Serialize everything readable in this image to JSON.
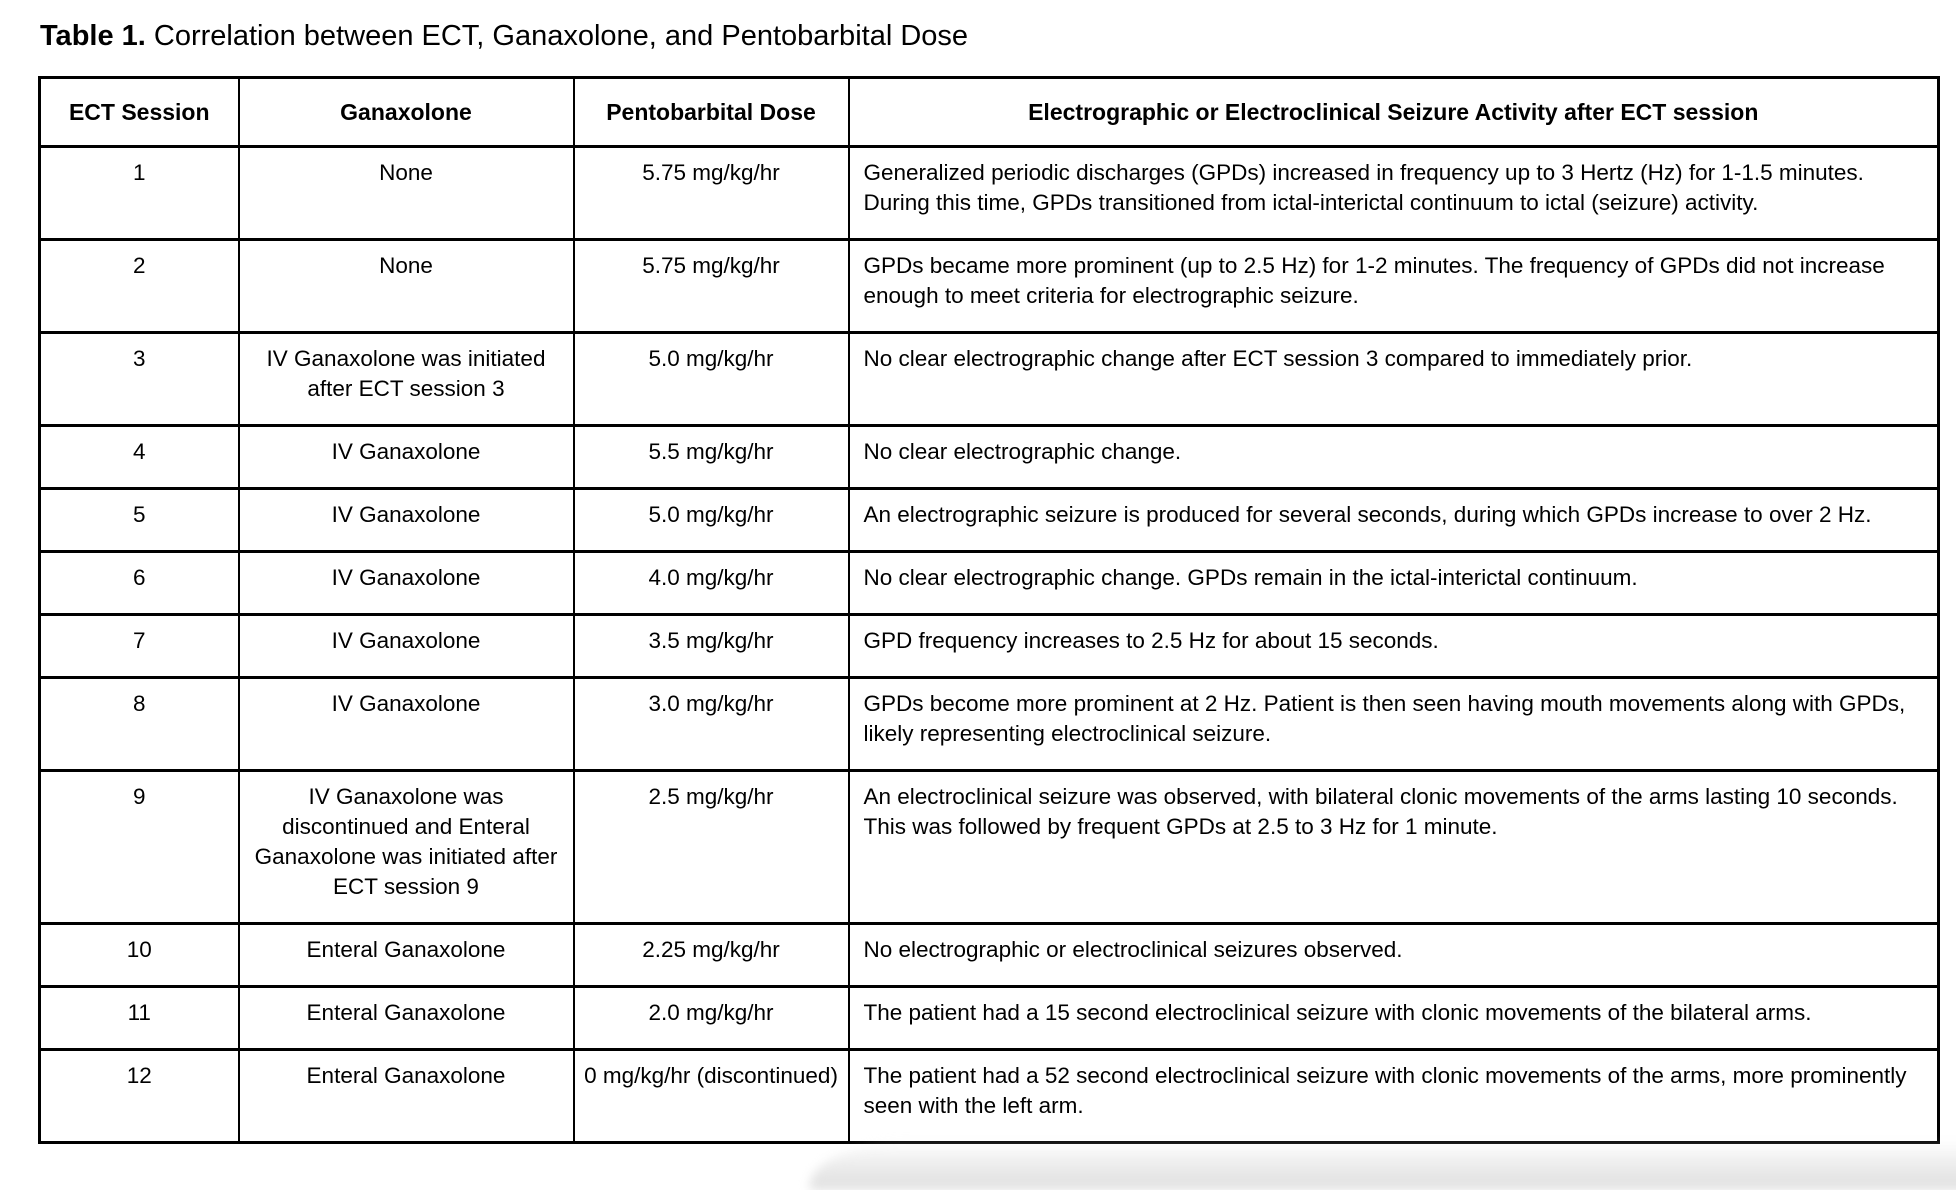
{
  "title": {
    "bold": "Table 1.",
    "rest": "Correlation between ECT, Ganaxolone, and Pentobarbital Dose"
  },
  "table": {
    "headers": [
      "ECT Session",
      "Ganaxolone",
      "Pentobarbital Dose",
      "Electrographic or Electroclinical Seizure Activity after ECT session"
    ],
    "rows": [
      {
        "session": "1",
        "ganaxolone": "None",
        "dose": "5.75 mg/kg/hr",
        "activity": "Generalized periodic discharges (GPDs) increased in frequency up to 3 Hertz (Hz) for 1-1.5 minutes. During this time, GPDs transitioned from ictal-interictal continuum to ictal (seizure) activity."
      },
      {
        "session": "2",
        "ganaxolone": "None",
        "dose": "5.75 mg/kg/hr",
        "activity": "GPDs became more prominent (up to 2.5 Hz) for 1-2 minutes. The frequency of GPDs did not increase enough to meet criteria for electrographic seizure."
      },
      {
        "session": "3",
        "ganaxolone": "IV Ganaxolone was initiated after ECT session 3",
        "dose": "5.0 mg/kg/hr",
        "activity": "No clear electrographic change after ECT session 3 compared to immediately prior."
      },
      {
        "session": "4",
        "ganaxolone": "IV Ganaxolone",
        "dose": "5.5 mg/kg/hr",
        "activity": "No clear electrographic change."
      },
      {
        "session": "5",
        "ganaxolone": "IV Ganaxolone",
        "dose": "5.0 mg/kg/hr",
        "activity": "An electrographic seizure is produced for several seconds, during which GPDs increase to over 2 Hz."
      },
      {
        "session": "6",
        "ganaxolone": "IV Ganaxolone",
        "dose": "4.0 mg/kg/hr",
        "activity": "No clear electrographic change. GPDs remain in the ictal-interictal continuum."
      },
      {
        "session": "7",
        "ganaxolone": "IV Ganaxolone",
        "dose": "3.5 mg/kg/hr",
        "activity": "GPD frequency increases to 2.5 Hz for about 15 seconds."
      },
      {
        "session": "8",
        "ganaxolone": "IV Ganaxolone",
        "dose": "3.0 mg/kg/hr",
        "activity": "GPDs become more prominent at 2 Hz. Patient is then seen having mouth movements along with GPDs, likely representing electroclinical seizure."
      },
      {
        "session": "9",
        "ganaxolone": "IV Ganaxolone was discontinued and Enteral Ganaxolone was initiated after ECT session 9",
        "dose": "2.5 mg/kg/hr",
        "activity": "An electroclinical seizure was observed, with bilateral clonic movements of the arms lasting 10 seconds. This was followed by frequent GPDs at 2.5 to 3 Hz for 1 minute."
      },
      {
        "session": "10",
        "ganaxolone": "Enteral Ganaxolone",
        "dose": "2.25 mg/kg/hr",
        "activity": "No electrographic or electroclinical seizures observed."
      },
      {
        "session": "11",
        "ganaxolone": "Enteral Ganaxolone",
        "dose": "2.0 mg/kg/hr",
        "activity": "The patient had a 15 second electroclinical seizure with clonic movements of the bilateral arms."
      },
      {
        "session": "12",
        "ganaxolone": "Enteral Ganaxolone",
        "dose": "0 mg/kg/hr (discontinued)",
        "activity": "The patient had a 52 second electroclinical seizure with clonic movements of the arms, more prominently seen with the left arm."
      }
    ]
  }
}
